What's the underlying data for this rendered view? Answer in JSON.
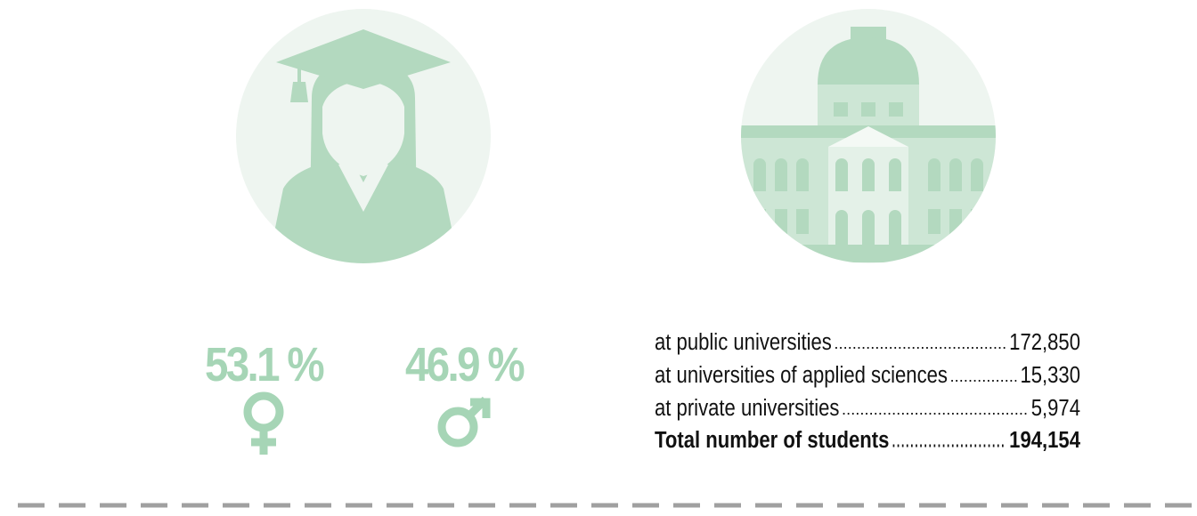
{
  "gender": {
    "female": "53.1 %",
    "male": "46.9 %"
  },
  "students": {
    "rows": [
      {
        "label": "at public universities",
        "value": "172,850"
      },
      {
        "label": "at universities of applied sciences",
        "value": "15,330"
      },
      {
        "label": "at private universities",
        "value": "5,974"
      },
      {
        "label": "Total number of students",
        "value": "194,154"
      }
    ]
  }
}
